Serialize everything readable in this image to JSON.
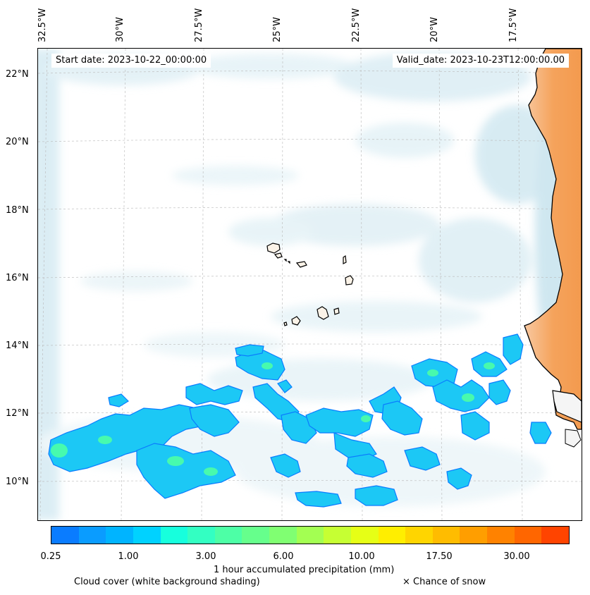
{
  "header": {
    "start_date": "Start date: 2023-10-22_00:00:00",
    "valid_date": "Valid_date: 2023-10-23T12:00:00.00"
  },
  "axes": {
    "lon_labels": [
      "32.5°W",
      "30°W",
      "27.5°W",
      "25°W",
      "22.5°W",
      "20°W",
      "17.5°W"
    ],
    "lat_labels": [
      "22°N",
      "20°N",
      "18°N",
      "16°N",
      "14°N",
      "12°N",
      "10°N"
    ]
  },
  "colorbar": {
    "ticks": [
      "0.25",
      "1.00",
      "3.00",
      "6.00",
      "10.00",
      "17.50",
      "30.00"
    ],
    "colors": [
      "#0a7cff",
      "#0a9cff",
      "#00b4ff",
      "#00d2ff",
      "#17ffdd",
      "#33ffc2",
      "#4dffa6",
      "#66ff8c",
      "#80ff72",
      "#a3ff52",
      "#c6ff33",
      "#e6ff16",
      "#ffee00",
      "#ffd500",
      "#ffbc00",
      "#ff9e00",
      "#ff8200",
      "#ff6600",
      "#ff4400"
    ],
    "label": "1 hour accumulated precipitation (mm)"
  },
  "legend": {
    "cloud_cover": "Cloud cover (white background shading)",
    "snow": "× Chance of snow"
  },
  "colors": {
    "land": "#f5a35c",
    "cloud": "#bfe0ec",
    "precip_edge": "#0a7cff",
    "precip_fill": "#1cc8f5",
    "precip_core": "#4dffa6"
  }
}
